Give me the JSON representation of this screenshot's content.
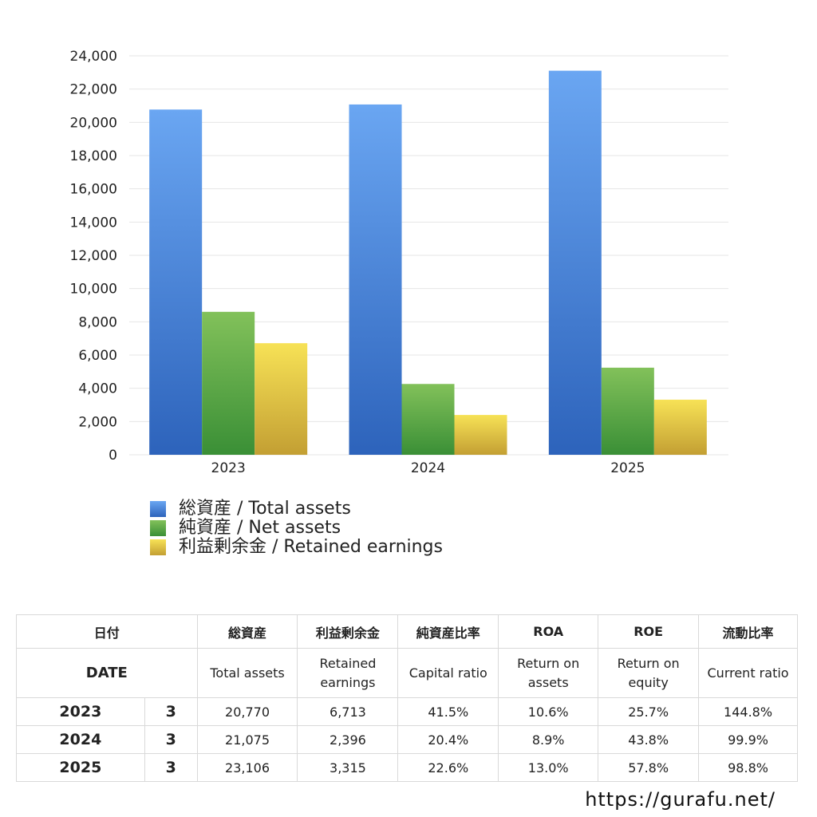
{
  "chart_data": {
    "type": "bar",
    "categories": [
      "2023",
      "2024",
      "2025"
    ],
    "series": [
      {
        "name": "総資産 / Total assets",
        "values": [
          20770,
          21075,
          23106
        ],
        "color_top": "#6aa6f2",
        "color_bottom": "#2d63bb"
      },
      {
        "name": "純資産 / Net assets",
        "values": [
          8600,
          4260,
          5240
        ],
        "color_top": "#82c15a",
        "color_bottom": "#3a8f36"
      },
      {
        "name": "利益剰余金 / Retained earnings",
        "values": [
          6713,
          2396,
          3315
        ],
        "color_top": "#f7e256",
        "color_bottom": "#c39f33"
      }
    ],
    "ylim": [
      0,
      24000
    ],
    "yticks": [
      "0",
      "2,000",
      "4,000",
      "6,000",
      "8,000",
      "10,000",
      "12,000",
      "14,000",
      "16,000",
      "18,000",
      "20,000",
      "22,000",
      "24,000"
    ],
    "grid": true,
    "legend_placement": "bottom-left"
  },
  "legend": [
    {
      "label": "総資産 / Total assets"
    },
    {
      "label": "純資産 / Net assets"
    },
    {
      "label": "利益剰余金 / Retained earnings"
    }
  ],
  "table": {
    "header_jp": {
      "date": "日付",
      "total_assets": "総資産",
      "retained": "利益剰余金",
      "capital_ratio": "純資産比率",
      "roa": "ROA",
      "roe": "ROE",
      "current_ratio": "流動比率"
    },
    "header_en": {
      "date": "DATE",
      "total_assets": "Total assets",
      "retained": "Retained earnings",
      "capital_ratio": "Capital ratio",
      "roa": "Return on assets",
      "roe": "Return on equity",
      "current_ratio": "Current ratio"
    },
    "rows": [
      {
        "year": "2023",
        "month": "3",
        "total_assets": "20,770",
        "retained": "6,713",
        "capital_ratio": "41.5%",
        "roa": "10.6%",
        "roe": "25.7%",
        "current_ratio": "144.8%"
      },
      {
        "year": "2024",
        "month": "3",
        "total_assets": "21,075",
        "retained": "2,396",
        "capital_ratio": "20.4%",
        "roa": "8.9%",
        "roe": "43.8%",
        "current_ratio": "99.9%"
      },
      {
        "year": "2025",
        "month": "3",
        "total_assets": "23,106",
        "retained": "3,315",
        "capital_ratio": "22.6%",
        "roa": "13.0%",
        "roe": "57.8%",
        "current_ratio": "98.8%"
      }
    ]
  },
  "footer": {
    "url": "https://gurafu.net/"
  }
}
